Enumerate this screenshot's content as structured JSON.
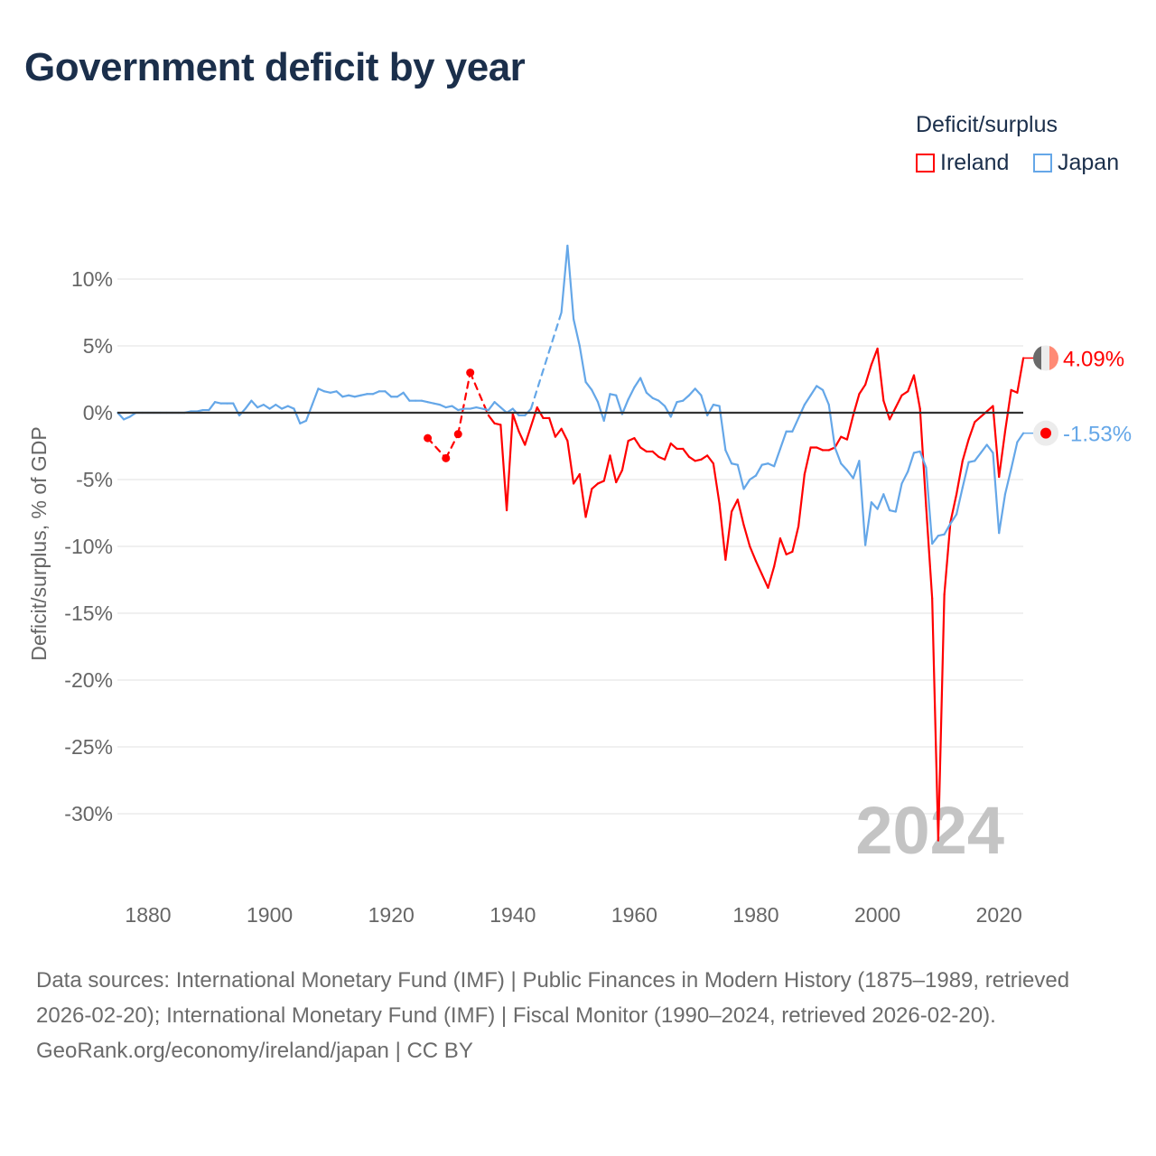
{
  "chart_data": {
    "type": "line",
    "title": "Government deficit by year",
    "ylabel": "Deficit/surplus, % of GDP",
    "xlabel": "",
    "ylim": [
      -35,
      12.5
    ],
    "xlim": [
      1875,
      2024
    ],
    "yticks": [
      10,
      5,
      0,
      -5,
      -10,
      -15,
      -20,
      -25,
      -30
    ],
    "ytick_labels": [
      "10%",
      "5%",
      "0%",
      "-5%",
      "-10%",
      "-15%",
      "-20%",
      "-25%",
      "-30%"
    ],
    "xticks": [
      1880,
      1900,
      1920,
      1940,
      1960,
      1980,
      2000,
      2020
    ],
    "xtick_labels": [
      "1880",
      "1900",
      "1920",
      "1940",
      "1960",
      "1980",
      "2000",
      "2020"
    ],
    "legend_title": "Deficit/surplus",
    "legend_position": "top-right",
    "grid": true,
    "year_watermark": "2024",
    "series": [
      {
        "name": "Ireland",
        "color": "#ff0000",
        "end_label": "4.09%",
        "x": [
          1926,
          1929,
          1931,
          1933,
          1936,
          1937,
          1938,
          1939,
          1940,
          1941,
          1942,
          1943,
          1944,
          1945,
          1946,
          1947,
          1948,
          1949,
          1950,
          1951,
          1952,
          1953,
          1954,
          1955,
          1956,
          1957,
          1958,
          1959,
          1960,
          1961,
          1962,
          1963,
          1964,
          1965,
          1966,
          1967,
          1968,
          1969,
          1970,
          1971,
          1972,
          1973,
          1974,
          1975,
          1976,
          1977,
          1978,
          1979,
          1980,
          1981,
          1982,
          1983,
          1984,
          1985,
          1986,
          1987,
          1988,
          1989,
          1990,
          1991,
          1992,
          1993,
          1994,
          1995,
          1996,
          1997,
          1998,
          1999,
          2000,
          2001,
          2002,
          2003,
          2004,
          2005,
          2006,
          2007,
          2008,
          2009,
          2010,
          2011,
          2012,
          2013,
          2014,
          2015,
          2016,
          2017,
          2018,
          2019,
          2020,
          2021,
          2022,
          2023,
          2024
        ],
        "y": [
          -1.9,
          -3.4,
          -1.6,
          3.0,
          -0.2,
          -0.8,
          -0.9,
          -7.3,
          -0.1,
          -1.4,
          -2.4,
          -1.0,
          0.4,
          -0.4,
          -0.4,
          -1.8,
          -1.2,
          -2.1,
          -5.3,
          -4.6,
          -7.8,
          -5.7,
          -5.3,
          -5.1,
          -3.2,
          -5.2,
          -4.3,
          -2.1,
          -1.9,
          -2.6,
          -2.9,
          -2.9,
          -3.3,
          -3.5,
          -2.3,
          -2.7,
          -2.7,
          -3.3,
          -3.6,
          -3.5,
          -3.2,
          -3.8,
          -6.8,
          -11.0,
          -7.4,
          -6.5,
          -8.4,
          -10.0,
          -11.1,
          -12.1,
          -13.1,
          -11.5,
          -9.4,
          -10.6,
          -10.4,
          -8.5,
          -4.6,
          -2.6,
          -2.6,
          -2.8,
          -2.8,
          -2.6,
          -1.8,
          -2.0,
          -0.2,
          1.4,
          2.1,
          3.6,
          4.8,
          0.9,
          -0.5,
          0.4,
          1.3,
          1.6,
          2.8,
          0.3,
          -7.0,
          -13.9,
          -32.0,
          -13.6,
          -8.2,
          -6.1,
          -3.6,
          -2.0,
          -0.7,
          -0.3,
          0.1,
          0.5,
          -4.8,
          -1.4,
          1.7,
          1.5,
          4.09
        ]
      },
      {
        "name": "Japan",
        "color": "#65a7e8",
        "end_label": "-1.53%",
        "x": [
          1875,
          1876,
          1877,
          1878,
          1879,
          1880,
          1881,
          1882,
          1883,
          1884,
          1885,
          1886,
          1887,
          1888,
          1889,
          1890,
          1891,
          1892,
          1893,
          1894,
          1895,
          1896,
          1897,
          1898,
          1899,
          1900,
          1901,
          1902,
          1903,
          1904,
          1905,
          1906,
          1907,
          1908,
          1909,
          1910,
          1911,
          1912,
          1913,
          1914,
          1915,
          1916,
          1917,
          1918,
          1919,
          1920,
          1921,
          1922,
          1923,
          1924,
          1925,
          1926,
          1927,
          1928,
          1929,
          1930,
          1931,
          1932,
          1933,
          1934,
          1935,
          1936,
          1937,
          1938,
          1939,
          1940,
          1941,
          1942,
          1943,
          1948,
          1949,
          1950,
          1951,
          1952,
          1953,
          1954,
          1955,
          1956,
          1957,
          1958,
          1959,
          1960,
          1961,
          1962,
          1963,
          1964,
          1965,
          1966,
          1967,
          1968,
          1969,
          1970,
          1971,
          1972,
          1973,
          1974,
          1975,
          1976,
          1977,
          1978,
          1979,
          1980,
          1981,
          1982,
          1983,
          1984,
          1985,
          1986,
          1987,
          1988,
          1989,
          1990,
          1991,
          1992,
          1993,
          1994,
          1995,
          1996,
          1997,
          1998,
          1999,
          2000,
          2001,
          2002,
          2003,
          2004,
          2005,
          2006,
          2007,
          2008,
          2009,
          2010,
          2011,
          2012,
          2013,
          2014,
          2015,
          2016,
          2017,
          2018,
          2019,
          2020,
          2021,
          2022,
          2023,
          2024
        ],
        "y": [
          0,
          -0.5,
          -0.3,
          0,
          0,
          0,
          0,
          0,
          0,
          0,
          0,
          0,
          0.1,
          0.1,
          0.2,
          0.2,
          0.8,
          0.7,
          0.7,
          0.7,
          -0.2,
          0.3,
          0.9,
          0.4,
          0.6,
          0.3,
          0.6,
          0.3,
          0.5,
          0.3,
          -0.8,
          -0.6,
          0.6,
          1.8,
          1.6,
          1.5,
          1.6,
          1.2,
          1.3,
          1.2,
          1.3,
          1.4,
          1.4,
          1.6,
          1.6,
          1.2,
          1.2,
          1.5,
          0.9,
          0.9,
          0.9,
          0.8,
          0.7,
          0.6,
          0.4,
          0.5,
          0.2,
          0.3,
          0.3,
          0.4,
          0.3,
          0.2,
          0.8,
          0.4,
          0,
          0.3,
          -0.2,
          -0.2,
          0.3,
          7.5,
          12.5,
          7.0,
          5.0,
          2.3,
          1.7,
          0.8,
          -0.6,
          1.4,
          1.3,
          -0.1,
          1.0,
          1.9,
          2.6,
          1.5,
          1.1,
          0.9,
          0.5,
          -0.3,
          0.8,
          0.9,
          1.3,
          1.8,
          1.3,
          -0.2,
          0.6,
          0.5,
          -2.8,
          -3.8,
          -3.9,
          -5.7,
          -5.0,
          -4.7,
          -3.9,
          -3.8,
          -4.0,
          -2.7,
          -1.4,
          -1.4,
          -0.4,
          0.6,
          1.3,
          2.0,
          1.7,
          0.6,
          -2.6,
          -3.8,
          -4.3,
          -4.9,
          -3.6,
          -9.9,
          -6.7,
          -7.2,
          -6.1,
          -7.3,
          -7.4,
          -5.3,
          -4.4,
          -3.0,
          -2.9,
          -4.1,
          -9.8,
          -9.2,
          -9.1,
          -8.3,
          -7.6,
          -5.6,
          -3.7,
          -3.6,
          -3.0,
          -2.4,
          -3.0,
          -9.0,
          -6.1,
          -4.2,
          -2.2,
          -1.53
        ]
      }
    ]
  },
  "footer": {
    "sources": "Data sources: International Monetary Fund (IMF) | Public Finances in Modern History (1875–1989, retrieved 2026-02-20); International Monetary Fund (IMF) | Fiscal Monitor (1990–2024, retrieved 2026-02-20).",
    "credit": "GeoRank.org/economy/ireland/japan | CC BY"
  }
}
